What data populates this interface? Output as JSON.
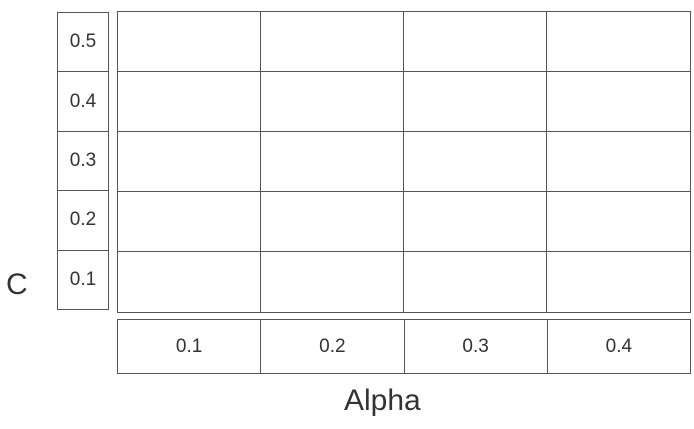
{
  "y_axis": {
    "title": "C",
    "values": [
      "0.5",
      "0.4",
      "0.3",
      "0.2",
      "0.1"
    ]
  },
  "x_axis": {
    "title": "Alpha",
    "values": [
      "0.1",
      "0.2",
      "0.3",
      "0.4"
    ]
  },
  "grid": {
    "rows": 5,
    "columns": 4
  }
}
